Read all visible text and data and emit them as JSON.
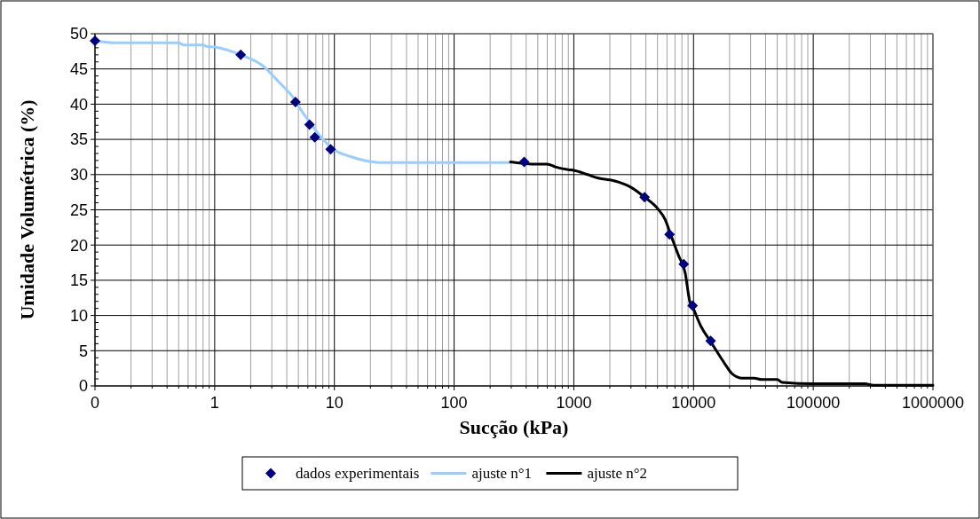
{
  "chart_data": {
    "type": "scatter",
    "xlabel": "Sucção (kPa)",
    "ylabel": "Umidade Volumétrica (%)",
    "log": "x",
    "xlim": [
      0.1,
      1000000
    ],
    "xticks": [
      {
        "value": 0.1,
        "label": "0"
      },
      1,
      10,
      100,
      1000,
      10000,
      100000,
      1000000
    ],
    "ylim": [
      0,
      50
    ],
    "yticks": [
      0,
      5,
      10,
      15,
      20,
      25,
      30,
      35,
      40,
      45,
      50
    ],
    "grid": true,
    "legend": "bottom",
    "series": [
      {
        "name": "dados experimentais",
        "marker": "diamond",
        "color": "#000080",
        "x": [
          0.1,
          1.65,
          4.73,
          6.2,
          6.86,
          9.3,
          385,
          3900,
          6300,
          8280,
          9820,
          13900
        ],
        "values": [
          49,
          47,
          40.3,
          37.1,
          35.3,
          33.6,
          31.8,
          26.8,
          21.5,
          17.3,
          11.4,
          6.4
        ]
      },
      {
        "name": "ajuste n°1",
        "type": "line",
        "line_style": "solid",
        "color": "#99ccff",
        "x": [
          0.1,
          0.15,
          0.5,
          0.55,
          0.8,
          0.85,
          1,
          1.65,
          2.5,
          3.5,
          4.5,
          5.2,
          6.5,
          8,
          10,
          14,
          18,
          25,
          100,
          296
        ],
        "values": [
          49,
          48.7,
          48.7,
          48.4,
          48.4,
          48.2,
          48.1,
          47,
          45.5,
          43,
          41,
          39.3,
          37,
          35,
          33.5,
          32.5,
          32,
          31.7,
          31.7,
          31.7
        ]
      },
      {
        "name": "ajuste n°2",
        "type": "line",
        "line_style": "solid",
        "color": "#000000",
        "x": [
          296,
          450,
          600,
          700,
          900,
          1000,
          1300,
          1600,
          2200,
          3000,
          3900,
          5000,
          5800,
          6500,
          7500,
          8500,
          9300,
          10000,
          11500,
          14000,
          18000,
          20800,
          22900,
          25000,
          32000,
          37000,
          50000,
          55000,
          100000,
          270000,
          320000,
          1000000
        ],
        "values": [
          31.8,
          31.5,
          31.5,
          31.1,
          30.7,
          30.6,
          30,
          29.5,
          29.1,
          28.2,
          26.8,
          25.2,
          23.6,
          21.3,
          18.5,
          16.1,
          12,
          10.9,
          8.5,
          6.2,
          3.3,
          1.8,
          1.3,
          1.1,
          1.1,
          0.9,
          0.9,
          0.5,
          0.3,
          0.3,
          0.1,
          0.1
        ]
      }
    ]
  }
}
